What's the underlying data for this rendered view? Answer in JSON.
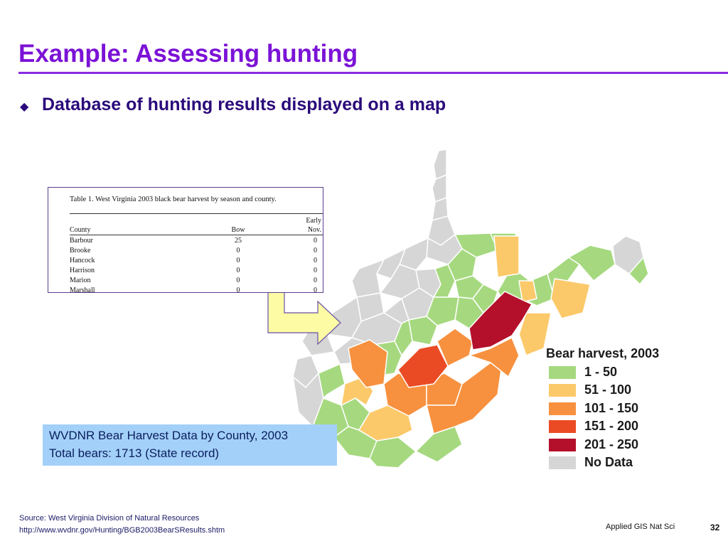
{
  "slide": {
    "title": "Example:  Assessing hunting",
    "bullet": "Database of hunting results displayed on a map",
    "bullet_marker": "◆"
  },
  "table": {
    "caption": "Table 1.  West Virginia 2003 black bear harvest by season and county.",
    "header_county": "County",
    "header_bow": "Bow",
    "header_early_line1": "Early",
    "header_early_line2": "Nov.",
    "rows": [
      {
        "county": "Barbour",
        "bow": "25",
        "nov": "0"
      },
      {
        "county": "Brooke",
        "bow": "0",
        "nov": "0"
      },
      {
        "county": "Hancock",
        "bow": "0",
        "nov": "0"
      },
      {
        "county": "Harrison",
        "bow": "0",
        "nov": "0"
      },
      {
        "county": "Marion",
        "bow": "0",
        "nov": "0"
      },
      {
        "county": "Marshall",
        "bow": "0",
        "nov": "0"
      }
    ]
  },
  "legend": {
    "title": "Bear harvest, 2003",
    "items": [
      {
        "label": "1 - 50",
        "color": "#a6d97f"
      },
      {
        "label": "51 - 100",
        "color": "#fcc96a"
      },
      {
        "label": "101 - 150",
        "color": "#f7913f"
      },
      {
        "label": "151 - 200",
        "color": "#ea4b24"
      },
      {
        "label": "201 - 250",
        "color": "#b40f2b"
      },
      {
        "label": "No Data",
        "color": "#d6d6d6"
      }
    ]
  },
  "info_box": {
    "line1": "WVDNR Bear Harvest Data by County, 2003",
    "line2": "Total bears:  1713 (State record)"
  },
  "source": {
    "line1": "Source:  West Virginia Division of Natural Resources",
    "line2": "http://www.wvdnr.gov/Hunting/BGB2003BearSResults.shtm"
  },
  "footer": {
    "course": "Applied GIS Nat Sci",
    "page_number": "32"
  },
  "colors": {
    "title": "#7b12d6",
    "bullet": "#2a0a7a",
    "arrow_fill": "#fdfca4",
    "arrow_stroke": "#6a4fa8",
    "info_box_bg": "#a3d0f8"
  }
}
